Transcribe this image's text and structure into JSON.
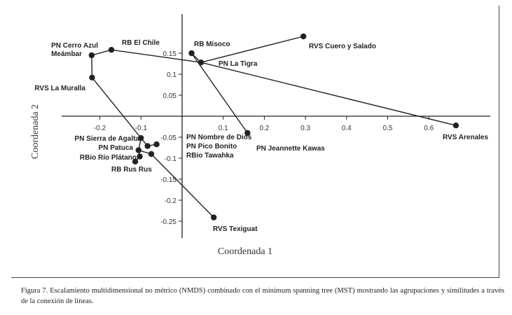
{
  "chart_data": {
    "type": "scatter",
    "title": "",
    "xlabel": "Coordenada 1",
    "ylabel": "Coordenada 2",
    "xlim": [
      -0.3,
      0.7
    ],
    "ylim": [
      -0.28,
      0.2
    ],
    "xticks": [
      "-0.2",
      "-0.1",
      "0.1",
      "0.2",
      "0.3",
      "0.4",
      "0.5",
      "0.6"
    ],
    "yticks": [
      "0.15",
      "0.1",
      "0.05",
      "-0.05",
      "-0.1",
      "-0.15",
      "-0.2",
      "-0.25"
    ],
    "grid": false,
    "point_color": "#222222",
    "points": [
      {
        "name": "PN Cerro Azul Meámbar",
        "lines": [
          "PN Cerro Azul",
          "Meámbar"
        ],
        "x": -0.22,
        "y": 0.145
      },
      {
        "name": "RB El Chile",
        "lines": [
          "RB El Chile"
        ],
        "x": -0.172,
        "y": 0.158
      },
      {
        "name": "RVS La Muralla",
        "lines": [
          "RVS La Muralla"
        ],
        "x": -0.219,
        "y": 0.092
      },
      {
        "name": "RB Misoco",
        "lines": [
          "RB Misoco"
        ],
        "x": 0.023,
        "y": 0.15
      },
      {
        "name": "PN La Tigra",
        "lines": [
          "PN La Tigra"
        ],
        "x": 0.046,
        "y": 0.128
      },
      {
        "name": "RVS Cuero y Salado",
        "lines": [
          "RVS Cuero y Salado"
        ],
        "x": 0.295,
        "y": 0.19
      },
      {
        "name": "PN Jeannette Kawas",
        "lines": [
          "PN Jeannette Kawas"
        ],
        "x": 0.159,
        "y": -0.04
      },
      {
        "name": "RVS Arenales",
        "lines": [
          "RVS Arenales"
        ],
        "x": 0.666,
        "y": -0.022
      },
      {
        "name": "PN Sierra de Agalta",
        "lines": [
          "PN Sierra de Agalta"
        ],
        "x": -0.1,
        "y": -0.052
      },
      {
        "name": "PN Nombre de Dios",
        "lines": [
          "PN Nombre de Dios"
        ],
        "x": -0.062,
        "y": -0.067
      },
      {
        "name": "PN Pico Bonito",
        "lines": [
          "PN Pico Bonito"
        ],
        "x": -0.084,
        "y": -0.071
      },
      {
        "name": "PN Patuca",
        "lines": [
          "PN Patuca"
        ],
        "x": -0.106,
        "y": -0.081
      },
      {
        "name": "RBio Río Plátano",
        "lines": [
          "RBio Río Plátano"
        ],
        "x": -0.103,
        "y": -0.096
      },
      {
        "name": "RBio Tawahka",
        "lines": [
          "RBio Tawahka"
        ],
        "x": -0.075,
        "y": -0.09
      },
      {
        "name": "RB Rus Rus",
        "lines": [
          "RB Rus Rus"
        ],
        "x": -0.114,
        "y": -0.108
      },
      {
        "name": "RVS Texiguat",
        "lines": [
          "RVS Texiguat"
        ],
        "x": 0.077,
        "y": -0.241
      }
    ],
    "mst_edges": [
      [
        "RVS La Muralla",
        "PN Cerro Azul Meámbar"
      ],
      [
        "PN Cerro Azul Meámbar",
        "RB El Chile"
      ],
      [
        "RB El Chile",
        "PN La Tigra"
      ],
      [
        "PN La Tigra",
        "RVS Arenales"
      ],
      [
        "PN La Tigra",
        "RVS Cuero y Salado"
      ],
      [
        "RB Misoco",
        "PN La Tigra"
      ],
      [
        "RB Misoco",
        "PN Jeannette Kawas"
      ],
      [
        "RVS La Muralla",
        "PN Sierra de Agalta"
      ],
      [
        "PN Sierra de Agalta",
        "PN Pico Bonito"
      ],
      [
        "PN Pico Bonito",
        "PN Nombre de Dios"
      ],
      [
        "PN Sierra de Agalta",
        "PN Patuca"
      ],
      [
        "PN Patuca",
        "RBio Río Plátano"
      ],
      [
        "RBio Río Plátano",
        "RB Rus Rus"
      ],
      [
        "PN Patuca",
        "RBio Tawahka"
      ],
      [
        "RBio Tawahka",
        "RVS Texiguat"
      ]
    ]
  },
  "caption": "Figura 7. Escalamiento multidimensional no métrico (NMDS) combinado con el minimum spanning tree (MST) mostrando las agrupaciones y similitudes a través de la conexión de líneas."
}
